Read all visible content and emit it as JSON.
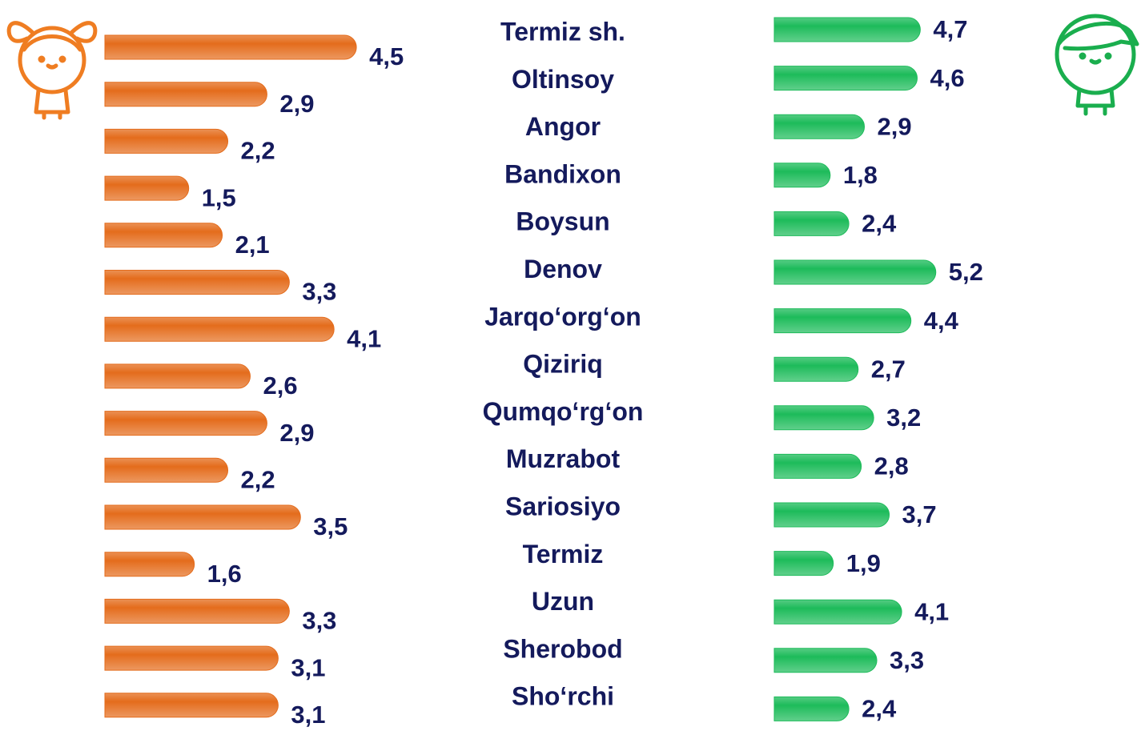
{
  "chart_data": {
    "type": "bar",
    "categories": [
      "Termiz sh.",
      "Oltinsoy",
      "Angor",
      "Bandixon",
      "Boysun",
      "Denov",
      "Jarqo‘org‘on",
      "Qiziriq",
      "Qumqo‘rg‘on",
      "Muzrabot",
      "Sariosiyo",
      "Termiz",
      "Uzun",
      "Sherobod",
      "Sho‘rchi"
    ],
    "series": [
      {
        "color": "#e46c1c",
        "values": [
          4.5,
          2.9,
          2.2,
          1.5,
          2.1,
          3.3,
          4.1,
          2.6,
          2.9,
          2.2,
          3.5,
          1.6,
          3.3,
          3.1,
          3.1
        ],
        "value_labels": [
          "4,5",
          "2,9",
          "2,2",
          "1,5",
          "2,1",
          "3,3",
          "4,1",
          "2,6",
          "2,9",
          "2,2",
          "3,5",
          "1,6",
          "3,3",
          "3,1",
          "3,1"
        ]
      },
      {
        "color": "#1dbb5a",
        "values": [
          4.7,
          4.6,
          2.9,
          1.8,
          2.4,
          5.2,
          4.4,
          2.7,
          3.2,
          2.8,
          3.7,
          1.9,
          4.1,
          3.3,
          2.4
        ],
        "value_labels": [
          "4,7",
          "4,6",
          "2,9",
          "1,8",
          "2,4",
          "5,2",
          "4,4",
          "2,7",
          "3,2",
          "2,8",
          "3,7",
          "1,9",
          "4,1",
          "3,3",
          "2,4"
        ]
      }
    ]
  }
}
